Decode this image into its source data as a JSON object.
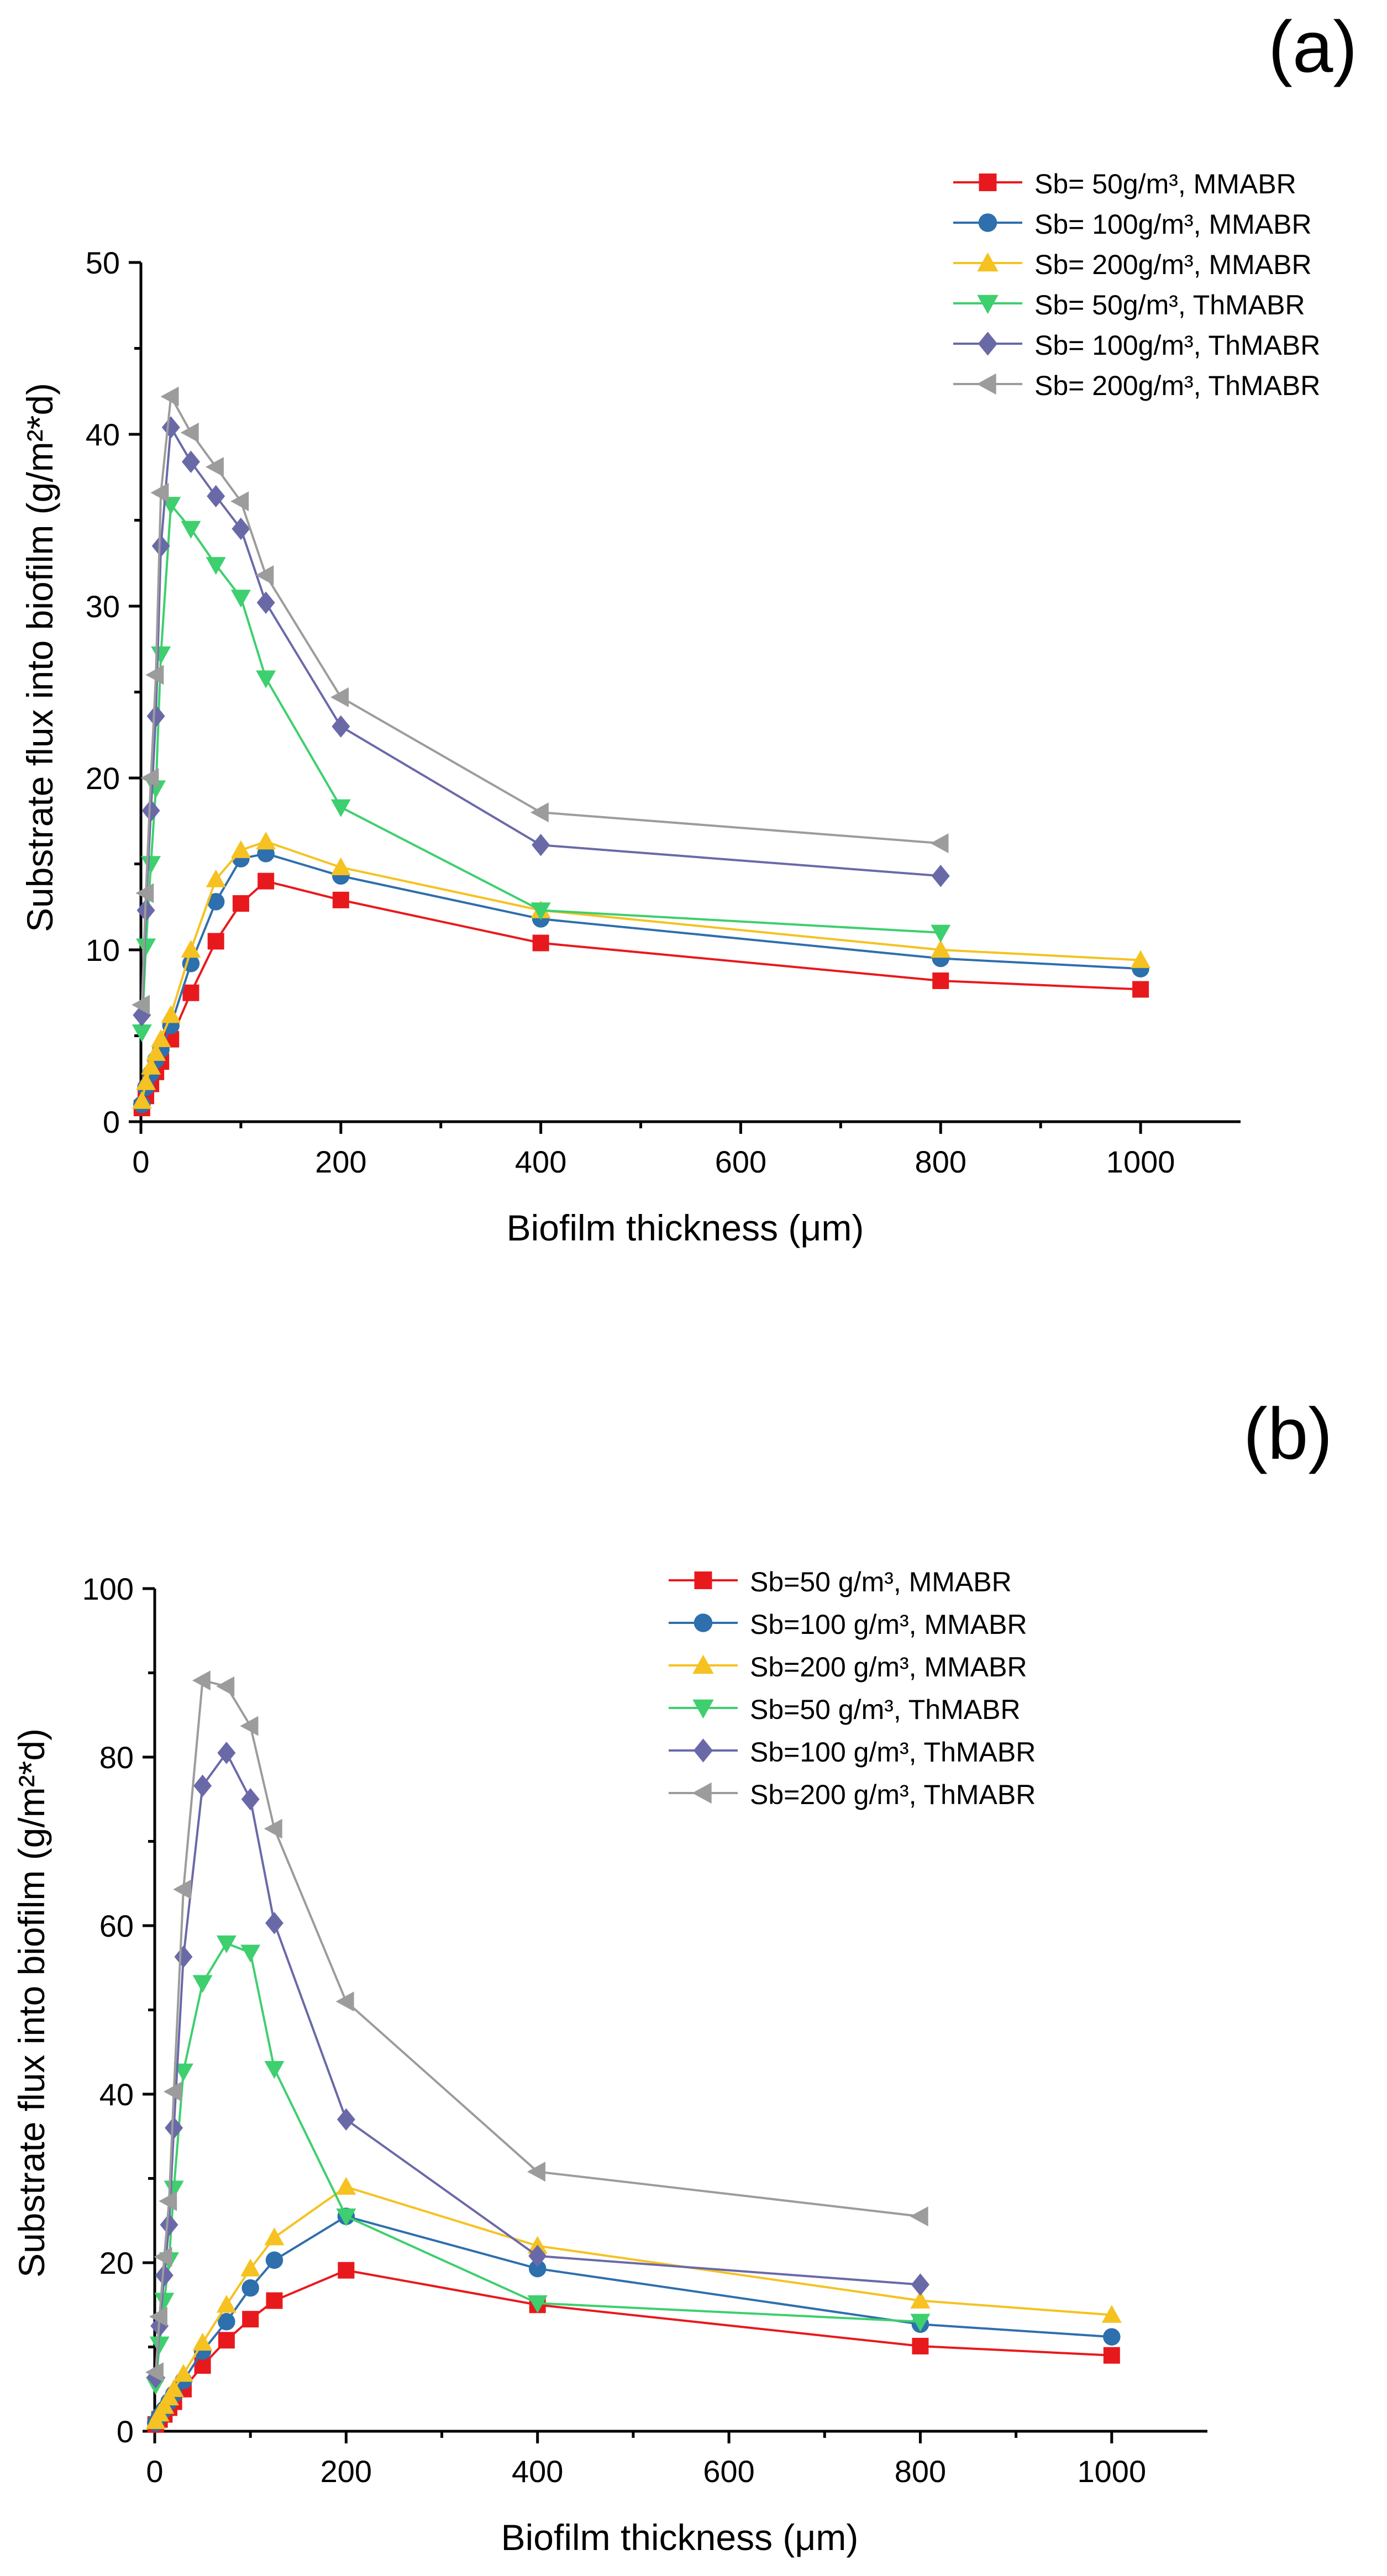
{
  "chart_data": [
    {
      "type": "line",
      "panel_label": "(a)",
      "xlabel": "Biofilm thickness (μm)",
      "ylabel": "Substrate flux into biofilm (g/m²*d)",
      "xlim": [
        0,
        1100
      ],
      "ylim": [
        0,
        50
      ],
      "xticks": [
        0,
        200,
        400,
        600,
        800,
        1000
      ],
      "yticks": [
        0,
        10,
        20,
        30,
        40,
        50
      ],
      "x": [
        1,
        5,
        10,
        15,
        20,
        30,
        50,
        75,
        100,
        125,
        200,
        400,
        800,
        1000
      ],
      "legend_position": "top-right",
      "series": [
        {
          "name": "Sb= 50g/m³, MMABR",
          "color": "#e8191d",
          "marker": "square",
          "values": [
            0.8,
            1.5,
            2.2,
            2.9,
            3.5,
            4.8,
            7.5,
            10.5,
            12.7,
            14.0,
            12.9,
            10.4,
            8.2,
            7.7
          ]
        },
        {
          "name": "Sb= 100g/m³, MMABR",
          "color": "#2e6fad",
          "marker": "circle",
          "values": [
            1.0,
            2.0,
            2.8,
            3.6,
            4.2,
            5.6,
            9.2,
            12.8,
            15.3,
            15.6,
            14.3,
            11.8,
            9.5,
            8.9
          ]
        },
        {
          "name": "Sb= 200g/m³, MMABR",
          "color": "#f5c221",
          "marker": "triangle-up",
          "values": [
            1.2,
            2.3,
            3.2,
            4.0,
            4.8,
            6.2,
            10.0,
            14.1,
            15.8,
            16.3,
            14.8,
            12.3,
            10.0,
            9.4
          ]
        },
        {
          "name": "Sb= 50g/m³, ThMABR",
          "color": "#3ecf6e",
          "marker": "triangle-down",
          "values": [
            5.2,
            10.2,
            15.0,
            19.4,
            27.2,
            35.9,
            34.5,
            32.4,
            30.5,
            25.8,
            18.3,
            12.3,
            11.0,
            null
          ]
        },
        {
          "name": "Sb= 100g/m³, ThMABR",
          "color": "#6a69a8",
          "marker": "diamond",
          "values": [
            6.2,
            12.3,
            18.1,
            23.6,
            33.5,
            40.4,
            38.4,
            36.4,
            34.5,
            30.2,
            23.0,
            16.1,
            14.3,
            null
          ]
        },
        {
          "name": "Sb= 200g/m³, ThMABR",
          "color": "#9c9c9c",
          "marker": "triangle-left",
          "values": [
            6.8,
            13.3,
            20.0,
            26.0,
            36.6,
            42.2,
            40.1,
            38.1,
            36.1,
            31.8,
            24.7,
            18.0,
            16.2,
            null
          ]
        }
      ]
    },
    {
      "type": "line",
      "panel_label": "(b)",
      "xlabel": "Biofilm thickness (μm)",
      "ylabel": "Substrate flux into biofilm (g/m²*d)",
      "xlim": [
        0,
        1100
      ],
      "ylim": [
        0,
        100
      ],
      "xticks": [
        0,
        200,
        400,
        600,
        800,
        1000
      ],
      "yticks": [
        0,
        20,
        40,
        60,
        80,
        100
      ],
      "x": [
        1,
        5,
        10,
        15,
        20,
        30,
        50,
        75,
        100,
        125,
        200,
        400,
        800,
        1000
      ],
      "legend_position": "top-right",
      "series": [
        {
          "name": "Sb=50 g/m³, MMABR",
          "color": "#e8191d",
          "marker": "square",
          "values": [
            0.8,
            1.4,
            2.0,
            2.8,
            3.5,
            5.0,
            7.8,
            10.8,
            13.3,
            15.5,
            19.1,
            15.0,
            10.1,
            9.0
          ]
        },
        {
          "name": "Sb=100 g/m³, MMABR",
          "color": "#2e6fad",
          "marker": "circle",
          "values": [
            1.0,
            1.8,
            2.6,
            3.5,
            4.4,
            6.0,
            9.5,
            13.0,
            17.0,
            20.3,
            25.5,
            19.3,
            12.7,
            11.2
          ]
        },
        {
          "name": "Sb=200 g/m³, MMABR",
          "color": "#f5c221",
          "marker": "triangle-up",
          "values": [
            1.2,
            2.1,
            3.0,
            4.0,
            5.0,
            6.8,
            10.5,
            15.0,
            19.3,
            23.0,
            29.0,
            22.0,
            15.5,
            13.8
          ]
        },
        {
          "name": "Sb=50 g/m³, ThMABR",
          "color": "#3ecf6e",
          "marker": "triangle-down",
          "values": [
            5.5,
            10.3,
            15.5,
            20.3,
            28.8,
            42.7,
            53.2,
            57.9,
            56.8,
            43.0,
            25.5,
            15.2,
            13.0,
            null
          ]
        },
        {
          "name": "Sb=100 g/m³, ThMABR",
          "color": "#6a69a8",
          "marker": "diamond",
          "values": [
            6.4,
            12.5,
            18.5,
            24.5,
            36.0,
            56.3,
            76.6,
            80.5,
            75.0,
            60.3,
            37.0,
            20.8,
            17.4,
            null
          ]
        },
        {
          "name": "Sb=200 g/m³, ThMABR",
          "color": "#9c9c9c",
          "marker": "triangle-left",
          "values": [
            7.0,
            13.6,
            20.7,
            27.3,
            40.3,
            64.3,
            89.1,
            88.4,
            83.7,
            71.5,
            51.0,
            30.8,
            25.5,
            null
          ]
        }
      ]
    }
  ]
}
